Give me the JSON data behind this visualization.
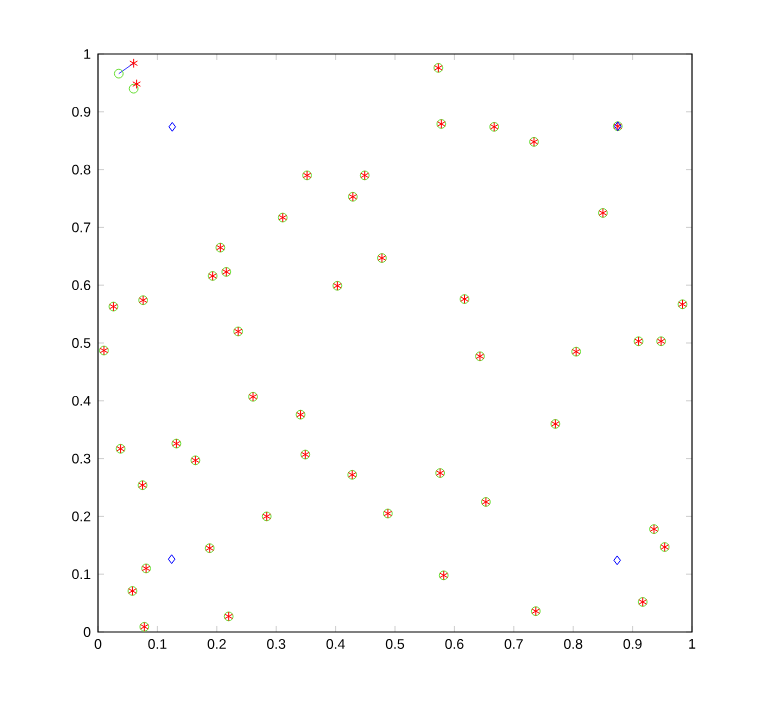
{
  "chart_data": {
    "type": "scatter",
    "xlim": [
      0,
      1
    ],
    "ylim": [
      0,
      1
    ],
    "xticks": [
      0,
      0.1,
      0.2,
      0.3,
      0.4,
      0.5,
      0.6,
      0.7,
      0.8,
      0.9,
      1
    ],
    "yticks": [
      0,
      0.1,
      0.2,
      0.3,
      0.4,
      0.5,
      0.6,
      0.7,
      0.8,
      0.9,
      1
    ],
    "grid": false,
    "series": [
      {
        "color": "#66dd33",
        "marker": "circle",
        "x": [
          0.035,
          0.06,
          0.026,
          0.076,
          0.193,
          0.206,
          0.216,
          0.236,
          0.311,
          0.352,
          0.403,
          0.429,
          0.449,
          0.478,
          0.573,
          0.578,
          0.667,
          0.734,
          0.875,
          0.85,
          0.617,
          0.984,
          0.01,
          0.038,
          0.075,
          0.132,
          0.164,
          0.261,
          0.341,
          0.349,
          0.428,
          0.488,
          0.284,
          0.188,
          0.081,
          0.058,
          0.078,
          0.22,
          0.643,
          0.805,
          0.91,
          0.948,
          0.77,
          0.576,
          0.653,
          0.936,
          0.954,
          0.582,
          0.737,
          0.917
        ],
        "values": [
          0.966,
          0.94,
          0.563,
          0.574,
          0.616,
          0.665,
          0.623,
          0.52,
          0.717,
          0.79,
          0.599,
          0.753,
          0.79,
          0.647,
          0.976,
          0.879,
          0.874,
          0.848,
          0.875,
          0.725,
          0.576,
          0.567,
          0.487,
          0.317,
          0.254,
          0.326,
          0.297,
          0.407,
          0.376,
          0.307,
          0.272,
          0.205,
          0.2,
          0.145,
          0.11,
          0.071,
          0.009,
          0.027,
          0.477,
          0.485,
          0.503,
          0.503,
          0.36,
          0.275,
          0.225,
          0.178,
          0.147,
          0.098,
          0.036,
          0.052
        ]
      },
      {
        "color": "#ff0000",
        "marker": "cross",
        "x": [
          0.06,
          0.065,
          0.026,
          0.076,
          0.193,
          0.206,
          0.216,
          0.236,
          0.311,
          0.352,
          0.403,
          0.429,
          0.449,
          0.478,
          0.573,
          0.578,
          0.667,
          0.734,
          0.875,
          0.85,
          0.617,
          0.984,
          0.01,
          0.038,
          0.075,
          0.132,
          0.164,
          0.261,
          0.341,
          0.349,
          0.428,
          0.488,
          0.284,
          0.188,
          0.081,
          0.058,
          0.078,
          0.22,
          0.643,
          0.805,
          0.91,
          0.948,
          0.77,
          0.576,
          0.653,
          0.936,
          0.954,
          0.582,
          0.737,
          0.917
        ],
        "values": [
          0.984,
          0.948,
          0.563,
          0.574,
          0.616,
          0.665,
          0.623,
          0.52,
          0.717,
          0.79,
          0.599,
          0.753,
          0.79,
          0.647,
          0.976,
          0.879,
          0.874,
          0.848,
          0.875,
          0.725,
          0.576,
          0.567,
          0.487,
          0.317,
          0.254,
          0.326,
          0.297,
          0.407,
          0.376,
          0.307,
          0.272,
          0.205,
          0.2,
          0.145,
          0.11,
          0.071,
          0.009,
          0.027,
          0.477,
          0.485,
          0.503,
          0.503,
          0.36,
          0.275,
          0.225,
          0.178,
          0.147,
          0.098,
          0.036,
          0.052
        ]
      },
      {
        "color": "#0000ff",
        "marker": "diamond",
        "x": [
          0.125,
          0.875,
          0.124,
          0.874
        ],
        "values": [
          0.874,
          0.875,
          0.126,
          0.124
        ]
      },
      {
        "type": "line",
        "color": "#0000ff",
        "marker": "none",
        "x": [
          0.035,
          0.06
        ],
        "values": [
          0.966,
          0.984
        ]
      }
    ]
  }
}
